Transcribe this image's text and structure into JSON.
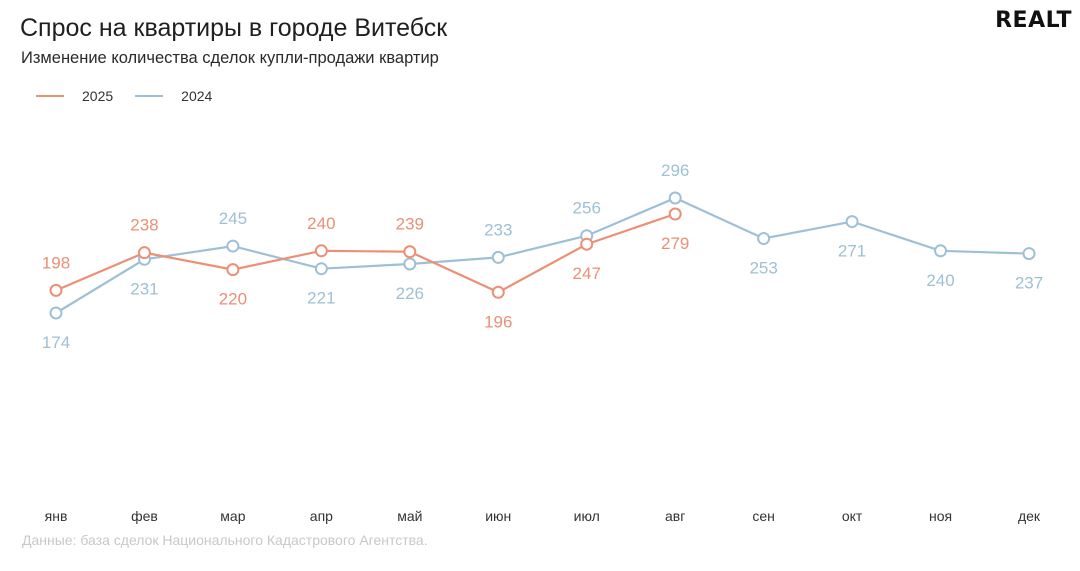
{
  "header": {
    "title": "Спрос на квартиры в городе Витебск",
    "subtitle": "Изменение количества сделок купли-продажи квартир",
    "logo": "REALT"
  },
  "footer": {
    "source": "Данные: база сделок Национального Кадастрового Агентства."
  },
  "chart_data": {
    "type": "line",
    "title": "Спрос на квартиры в городе Витебск",
    "subtitle": "Изменение количества сделок купли-продажи квартир",
    "categories": [
      "янв",
      "фев",
      "мар",
      "апр",
      "май",
      "июн",
      "июл",
      "авг",
      "сен",
      "окт",
      "ноя",
      "дек"
    ],
    "series": [
      {
        "name": "2024",
        "color": "#9ec0d6",
        "values": [
          174,
          231,
          245,
          221,
          226,
          233,
          256,
          296,
          253,
          271,
          240,
          237
        ],
        "label_pos": [
          "below",
          "below",
          "above",
          "below",
          "below",
          "above",
          "above",
          "above",
          "below",
          "below",
          "below",
          "below"
        ]
      },
      {
        "name": "2025",
        "color": "#ec8f75",
        "values": [
          198,
          238,
          220,
          240,
          239,
          196,
          247,
          279,
          null,
          null,
          null,
          null
        ],
        "label_pos": [
          "above",
          "above",
          "below",
          "above",
          "above",
          "below",
          "below",
          "below",
          null,
          null,
          null,
          null
        ]
      }
    ],
    "legend_placement": "top-left",
    "grid": false,
    "ylim": [
      0,
      400
    ]
  }
}
